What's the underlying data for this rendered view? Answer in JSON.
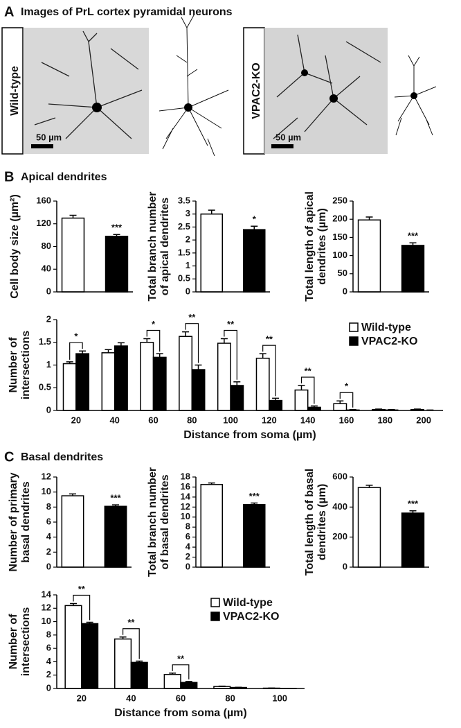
{
  "panel_a": {
    "letter": "A",
    "title": "Images of PrL cortex pyramidal neurons",
    "images": [
      {
        "label": "Wild-type",
        "scale_bar": "50 µm"
      },
      {
        "label": "VPAC2-KO",
        "scale_bar": "50 µm"
      }
    ]
  },
  "panel_b": {
    "letter": "B",
    "title": "Apical dendrites"
  },
  "panel_c": {
    "letter": "C",
    "title": "Basal dendrites"
  },
  "chart_data": [
    {
      "type": "bar",
      "ylabel": [
        "Cell body size (µm²)"
      ],
      "categories": [
        null,
        null
      ],
      "values": [
        130,
        98
      ],
      "errors": [
        5,
        3
      ],
      "colors": [
        "#ffffff",
        "#000000"
      ],
      "significance": "***",
      "ylim": [
        0,
        160
      ],
      "yticks": [
        0,
        40,
        80,
        120,
        160
      ]
    },
    {
      "type": "bar",
      "ylabel": [
        "Total branch number",
        "of apical dendrites"
      ],
      "categories": [
        null,
        null
      ],
      "values": [
        3.0,
        2.4
      ],
      "errors": [
        0.15,
        0.13
      ],
      "colors": [
        "#ffffff",
        "#000000"
      ],
      "significance": "*",
      "ylim": [
        0,
        3.5
      ],
      "yticks": [
        0,
        0.5,
        1,
        1.5,
        2,
        2.5,
        3,
        3.5
      ]
    },
    {
      "type": "bar",
      "ylabel": [
        "Total length of apical",
        "dendrites (µm)"
      ],
      "categories": [
        null,
        null
      ],
      "values": [
        198,
        128
      ],
      "errors": [
        8,
        7
      ],
      "colors": [
        "#ffffff",
        "#000000"
      ],
      "significance": "***",
      "ylim": [
        0,
        250
      ],
      "yticks": [
        0,
        50,
        100,
        150,
        200,
        250
      ]
    },
    {
      "type": "bar",
      "ylabel": [
        "Number of",
        "intersections"
      ],
      "xlabel": "Distance from soma (µm)",
      "categories": [
        20,
        40,
        60,
        80,
        100,
        120,
        140,
        160,
        180,
        200
      ],
      "series": [
        {
          "name": "Wild-type",
          "color": "#ffffff",
          "values": [
            1.03,
            1.27,
            1.5,
            1.63,
            1.48,
            1.15,
            0.45,
            0.15,
            0.02,
            0.02
          ],
          "errors": [
            0.04,
            0.07,
            0.08,
            0.1,
            0.1,
            0.1,
            0.1,
            0.06,
            0.01,
            0.01
          ]
        },
        {
          "name": "VPAC2-KO",
          "color": "#000000",
          "values": [
            1.25,
            1.42,
            1.17,
            0.9,
            0.55,
            0.22,
            0.07,
            0.01,
            0.01,
            0.0
          ],
          "errors": [
            0.06,
            0.07,
            0.08,
            0.1,
            0.08,
            0.05,
            0.03,
            0.01,
            0.01,
            0.01
          ]
        }
      ],
      "significance": [
        "*",
        null,
        "*",
        "**",
        "**",
        "**",
        "**",
        "*",
        null,
        null
      ],
      "ylim": [
        0,
        2
      ],
      "yticks": [
        0,
        0.5,
        1,
        1.5,
        2
      ],
      "legend": "top-right"
    },
    {
      "type": "bar",
      "ylabel": [
        "Number of primary",
        "basal dendrites"
      ],
      "categories": [
        null,
        null
      ],
      "values": [
        9.5,
        8.1
      ],
      "errors": [
        0.25,
        0.2
      ],
      "colors": [
        "#ffffff",
        "#000000"
      ],
      "significance": "***",
      "ylim": [
        0,
        12
      ],
      "yticks": [
        0,
        2,
        4,
        6,
        8,
        10,
        12
      ]
    },
    {
      "type": "bar",
      "ylabel": [
        "Total branch number",
        "of basal dendrites"
      ],
      "categories": [
        null,
        null
      ],
      "values": [
        16.5,
        12.5
      ],
      "errors": [
        0.3,
        0.3
      ],
      "colors": [
        "#ffffff",
        "#000000"
      ],
      "significance": "***",
      "ylim": [
        0,
        18
      ],
      "yticks": [
        0,
        2,
        4,
        6,
        8,
        10,
        12,
        14,
        16,
        18
      ]
    },
    {
      "type": "bar",
      "ylabel": [
        "Total length of basal",
        "dendrites (µm)"
      ],
      "categories": [
        null,
        null
      ],
      "values": [
        530,
        360
      ],
      "errors": [
        15,
        15
      ],
      "colors": [
        "#ffffff",
        "#000000"
      ],
      "significance": "***",
      "ylim": [
        0,
        600
      ],
      "yticks": [
        0,
        200,
        400,
        600
      ]
    },
    {
      "type": "bar",
      "ylabel": [
        "Number of",
        "intersections"
      ],
      "xlabel": "Distance from soma (µm)",
      "categories": [
        20,
        40,
        60,
        80,
        100
      ],
      "series": [
        {
          "name": "Wild-type",
          "color": "#ffffff",
          "values": [
            12.4,
            7.4,
            2.1,
            0.3,
            0.05
          ],
          "errors": [
            0.3,
            0.3,
            0.2,
            0.05,
            0.02
          ]
        },
        {
          "name": "VPAC2-KO",
          "color": "#000000",
          "values": [
            9.7,
            3.9,
            0.9,
            0.15,
            0.02
          ],
          "errors": [
            0.2,
            0.2,
            0.15,
            0.03,
            0.01
          ]
        }
      ],
      "significance": [
        "**",
        "**",
        "**",
        null,
        null
      ],
      "ylim": [
        0,
        14
      ],
      "yticks": [
        0,
        2,
        4,
        6,
        8,
        10,
        12,
        14
      ],
      "legend": "top-right"
    }
  ]
}
